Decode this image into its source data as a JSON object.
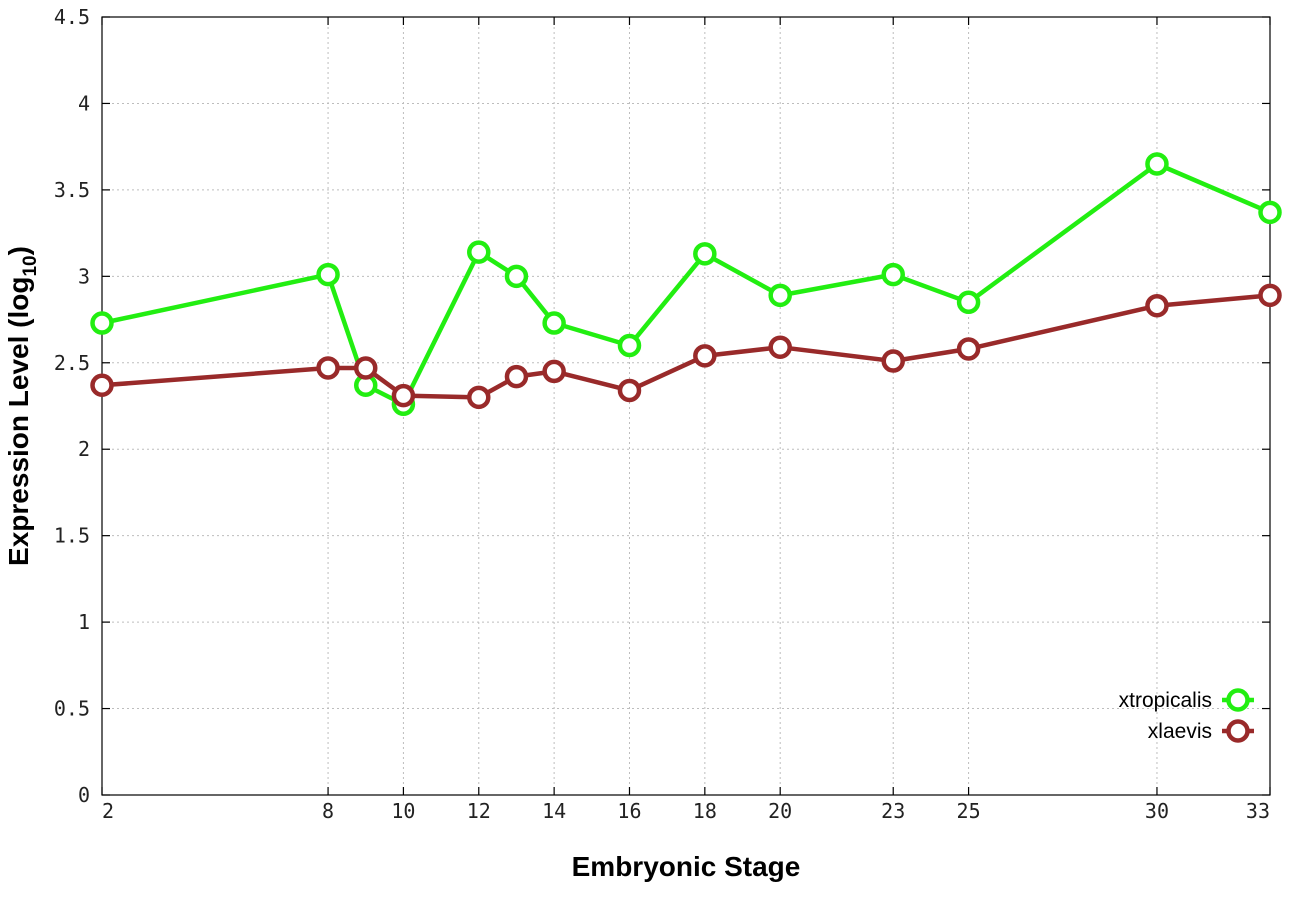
{
  "chart_data": {
    "type": "line",
    "xlabel": "Embryonic Stage",
    "ylabel": "Expression Level (log",
    "ylabel_sub": "10",
    "ylabel_close": ")",
    "xlim": [
      2,
      33
    ],
    "ylim": [
      0,
      4.5
    ],
    "grid": true,
    "legend_position": "bottom-right",
    "x_ticks": [
      2,
      8,
      10,
      12,
      14,
      16,
      18,
      20,
      23,
      25,
      30,
      33
    ],
    "x_tick_labels": [
      "2",
      "8",
      "10",
      "12",
      "14",
      "16",
      "18",
      "20",
      "23",
      "25",
      "30",
      "33"
    ],
    "y_ticks": [
      0,
      0.5,
      1,
      1.5,
      2,
      2.5,
      3,
      3.5,
      4,
      4.5
    ],
    "y_tick_labels": [
      "0",
      "0.5",
      "1",
      "1.5",
      "2",
      "2.5",
      "3",
      "3.5",
      "4",
      "4.5"
    ],
    "x": [
      2,
      8,
      9,
      10,
      12,
      13,
      14,
      16,
      18,
      20,
      23,
      25,
      30,
      33
    ],
    "series": [
      {
        "name": "xtropicalis",
        "color": "#22ee11",
        "values": [
          2.73,
          3.01,
          2.37,
          2.26,
          3.14,
          3.0,
          2.73,
          2.6,
          3.13,
          2.89,
          3.01,
          2.85,
          3.65,
          3.37
        ]
      },
      {
        "name": "xlaevis",
        "color": "#992a2a",
        "values": [
          2.37,
          2.47,
          2.47,
          2.31,
          2.3,
          2.42,
          2.45,
          2.34,
          2.54,
          2.59,
          2.51,
          2.58,
          2.83,
          2.89
        ]
      }
    ]
  }
}
